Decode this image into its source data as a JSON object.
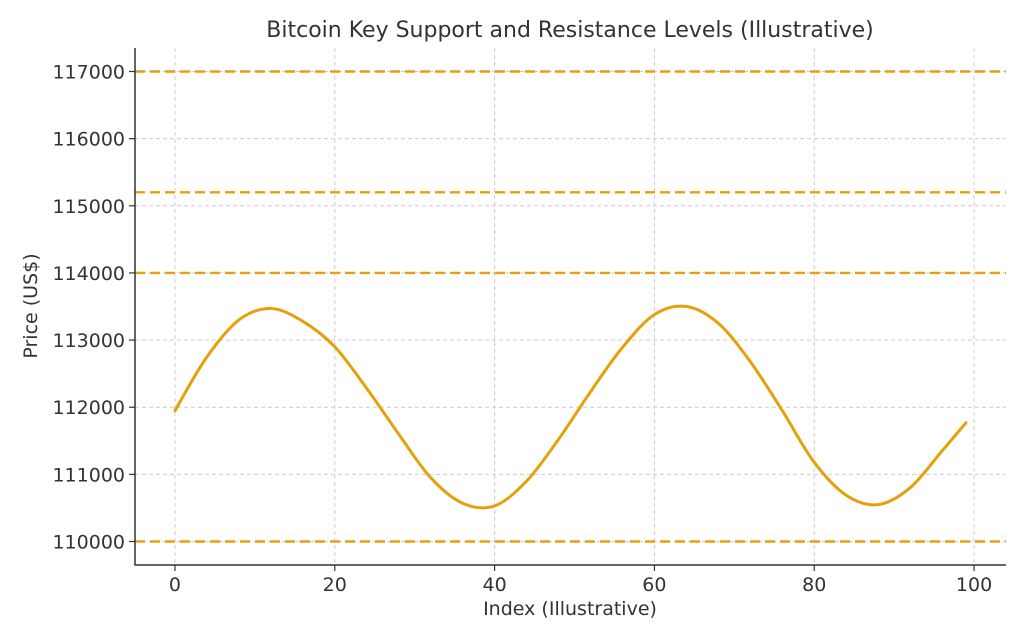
{
  "chart_data": {
    "type": "line",
    "title": "Bitcoin Key Support and Resistance Levels (Illustrative)",
    "xlabel": "Index (Illustrative)",
    "ylabel": "Price (US$)",
    "xlim": [
      -5,
      104
    ],
    "ylim": [
      109650,
      117350
    ],
    "x_ticks": [
      0,
      20,
      40,
      60,
      80,
      100
    ],
    "y_ticks": [
      110000,
      111000,
      112000,
      113000,
      114000,
      115000,
      116000,
      117000
    ],
    "grid": true,
    "line_color": "#E6A10A",
    "series": [
      {
        "x": [
          0,
          4,
          8,
          12,
          16,
          20,
          24,
          28,
          32,
          36,
          40,
          44,
          48,
          52,
          56,
          60,
          64,
          68,
          72,
          76,
          80,
          84,
          88,
          92,
          96,
          99
        ],
        "values": [
          111950,
          112750,
          113300,
          113470,
          113280,
          112900,
          112280,
          111600,
          110950,
          110570,
          110530,
          110900,
          111520,
          112230,
          112890,
          113380,
          113500,
          113250,
          112680,
          111950,
          111180,
          110690,
          110550,
          110800,
          111350,
          111770
        ]
      }
    ],
    "horizontal_levels": [
      {
        "value": 117000,
        "color": "#E6A10A"
      },
      {
        "value": 115200,
        "color": "#E6A10A"
      },
      {
        "value": 114000,
        "color": "#E6A10A"
      },
      {
        "value": 110000,
        "color": "#E6A10A"
      }
    ]
  }
}
